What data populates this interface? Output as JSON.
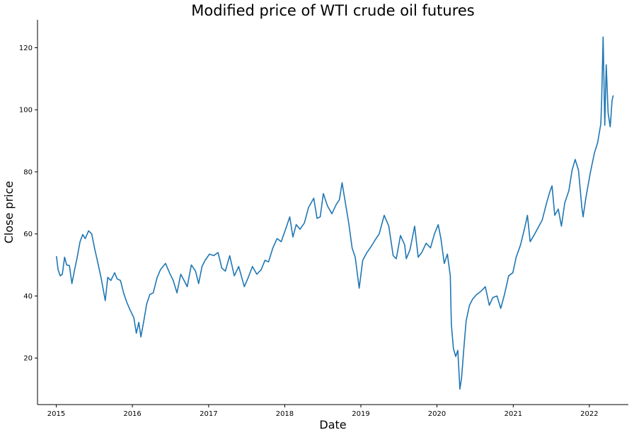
{
  "chart_data": {
    "type": "line",
    "title": "Modified price of WTI crude oil futures",
    "xlabel": "Date",
    "ylabel": "Close price",
    "xlim": [
      "2014-10-03",
      "2022-07-07"
    ],
    "ylim": [
      5,
      129
    ],
    "x_ticks": [
      "2015",
      "2016",
      "2017",
      "2018",
      "2019",
      "2020",
      "2021",
      "2022"
    ],
    "y_ticks": [
      20,
      40,
      60,
      80,
      100,
      120
    ],
    "grid": false,
    "series": [
      {
        "color": "#1f77b4",
        "x": [
          "2015-01-02",
          "2015-01-10",
          "2015-01-20",
          "2015-01-30",
          "2015-02-10",
          "2015-02-20",
          "2015-03-05",
          "2015-03-17",
          "2015-03-30",
          "2015-04-10",
          "2015-04-25",
          "2015-05-08",
          "2015-05-20",
          "2015-06-05",
          "2015-06-20",
          "2015-07-05",
          "2015-07-20",
          "2015-08-05",
          "2015-08-24",
          "2015-09-05",
          "2015-09-20",
          "2015-10-08",
          "2015-10-20",
          "2015-11-05",
          "2015-11-20",
          "2015-12-05",
          "2015-12-21",
          "2016-01-08",
          "2016-01-20",
          "2016-02-01",
          "2016-02-11",
          "2016-02-25",
          "2016-03-10",
          "2016-03-25",
          "2016-04-10",
          "2016-04-29",
          "2016-05-15",
          "2016-06-08",
          "2016-06-27",
          "2016-07-15",
          "2016-08-02",
          "2016-08-20",
          "2016-09-05",
          "2016-09-20",
          "2016-10-10",
          "2016-10-30",
          "2016-11-14",
          "2016-11-30",
          "2016-12-15",
          "2017-01-05",
          "2017-01-25",
          "2017-02-15",
          "2017-03-05",
          "2017-03-22",
          "2017-04-12",
          "2017-05-04",
          "2017-05-25",
          "2017-06-21",
          "2017-07-10",
          "2017-07-30",
          "2017-08-20",
          "2017-09-10",
          "2017-09-28",
          "2017-10-15",
          "2017-11-05",
          "2017-11-25",
          "2017-12-15",
          "2018-01-05",
          "2018-01-25",
          "2018-02-09",
          "2018-02-25",
          "2018-03-15",
          "2018-04-05",
          "2018-04-25",
          "2018-05-20",
          "2018-06-05",
          "2018-06-20",
          "2018-07-05",
          "2018-07-25",
          "2018-08-15",
          "2018-09-05",
          "2018-09-20",
          "2018-10-03",
          "2018-10-20",
          "2018-11-05",
          "2018-11-20",
          "2018-12-05",
          "2018-12-24",
          "2019-01-10",
          "2019-01-30",
          "2019-02-20",
          "2019-03-10",
          "2019-03-30",
          "2019-04-23",
          "2019-05-15",
          "2019-06-05",
          "2019-06-20",
          "2019-07-10",
          "2019-07-30",
          "2019-08-07",
          "2019-08-25",
          "2019-09-16",
          "2019-10-03",
          "2019-10-20",
          "2019-11-10",
          "2019-12-01",
          "2019-12-20",
          "2020-01-07",
          "2020-01-20",
          "2020-02-05",
          "2020-02-20",
          "2020-03-05",
          "2020-03-10",
          "2020-03-20",
          "2020-03-31",
          "2020-04-10",
          "2020-04-20",
          "2020-04-28",
          "2020-05-10",
          "2020-05-20",
          "2020-06-05",
          "2020-06-20",
          "2020-07-10",
          "2020-07-30",
          "2020-08-20",
          "2020-09-08",
          "2020-09-25",
          "2020-10-15",
          "2020-11-02",
          "2020-11-20",
          "2020-12-10",
          "2020-12-30",
          "2021-01-15",
          "2021-02-05",
          "2021-02-25",
          "2021-03-10",
          "2021-03-23",
          "2021-04-10",
          "2021-04-30",
          "2021-05-20",
          "2021-06-10",
          "2021-06-25",
          "2021-07-06",
          "2021-07-19",
          "2021-08-05",
          "2021-08-20",
          "2021-09-05",
          "2021-09-25",
          "2021-10-10",
          "2021-10-25",
          "2021-11-10",
          "2021-11-26",
          "2021-12-02",
          "2021-12-15",
          "2022-01-05",
          "2022-01-25",
          "2022-02-10",
          "2022-02-25",
          "2022-03-01",
          "2022-03-08",
          "2022-03-16",
          "2022-03-23",
          "2022-04-01",
          "2022-04-11",
          "2022-04-20",
          "2022-04-25"
        ],
        "values": [
          52.7,
          48.4,
          46.5,
          47.0,
          52.5,
          50.0,
          49.8,
          44.0,
          48.5,
          52.0,
          57.5,
          59.8,
          58.5,
          61.0,
          60.0,
          55.0,
          50.5,
          45.5,
          38.5,
          46.0,
          45.0,
          47.5,
          45.5,
          45.0,
          41.0,
          38.0,
          35.5,
          33.0,
          28.0,
          31.5,
          26.8,
          32.0,
          37.5,
          40.5,
          41.0,
          46.0,
          48.5,
          50.5,
          47.5,
          45.0,
          41.0,
          47.0,
          45.0,
          43.0,
          50.0,
          48.0,
          44.0,
          49.5,
          51.5,
          53.5,
          53.0,
          54.0,
          49.0,
          48.0,
          53.0,
          46.5,
          49.5,
          43.0,
          46.0,
          49.5,
          47.0,
          48.5,
          51.5,
          51.0,
          55.5,
          58.5,
          57.5,
          61.5,
          65.5,
          59.0,
          63.0,
          61.5,
          63.5,
          68.5,
          71.5,
          65.0,
          65.5,
          73.0,
          69.0,
          66.5,
          69.5,
          71.0,
          76.5,
          69.5,
          63.0,
          55.5,
          52.5,
          42.5,
          51.5,
          54.0,
          56.0,
          58.0,
          60.0,
          66.0,
          62.5,
          53.0,
          52.0,
          59.5,
          56.5,
          52.0,
          55.0,
          62.5,
          52.5,
          54.0,
          57.0,
          55.5,
          60.0,
          63.0,
          58.5,
          50.5,
          53.5,
          46.5,
          31.0,
          23.0,
          20.5,
          22.5,
          10.0,
          13.5,
          24.0,
          32.0,
          37.0,
          39.0,
          40.5,
          41.5,
          43.0,
          37.0,
          39.5,
          40.0,
          36.0,
          40.5,
          46.5,
          47.5,
          52.5,
          56.5,
          62.0,
          66.0,
          57.5,
          59.5,
          62.0,
          64.5,
          70.0,
          73.5,
          75.5,
          66.0,
          68.0,
          62.5,
          70.0,
          74.0,
          80.5,
          84.0,
          80.5,
          68.5,
          65.5,
          71.5,
          79.5,
          86.0,
          89.5,
          95.5,
          103.0,
          123.5,
          95.0,
          114.5,
          99.0,
          94.5,
          103.0,
          104.5
        ]
      }
    ]
  }
}
